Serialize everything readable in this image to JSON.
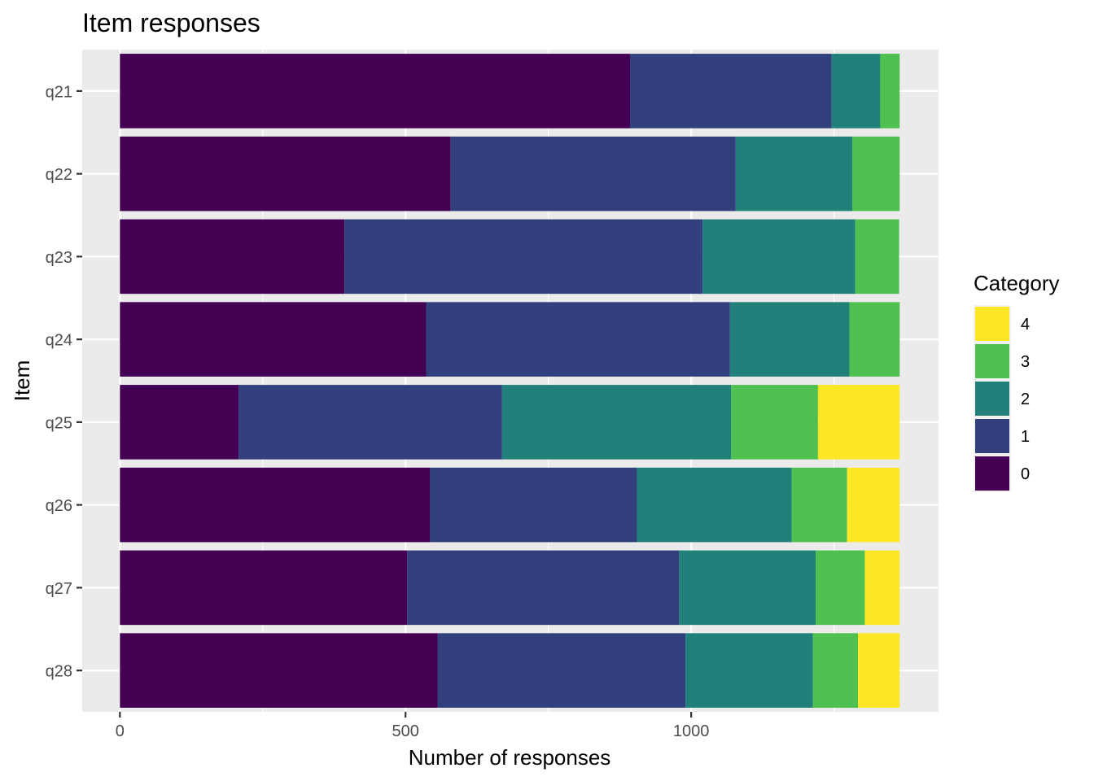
{
  "chart_data": {
    "type": "bar",
    "orientation": "horizontal",
    "stacked": true,
    "title": "Item responses",
    "xlabel": "Number of responses",
    "ylabel": "Item",
    "xlim": [
      -66,
      1433
    ],
    "x_ticks": [
      0,
      500,
      1000
    ],
    "x_tick_labels": [
      "0",
      "500",
      "1000"
    ],
    "grid": true,
    "legend_position": "right",
    "legend_title": "Category",
    "categories": [
      "q21",
      "q22",
      "q23",
      "q24",
      "q25",
      "q26",
      "q27",
      "q28"
    ],
    "series": [
      {
        "name": "0",
        "color": "#440154",
        "values": [
          893,
          579,
          393,
          536,
          208,
          543,
          503,
          556
        ]
      },
      {
        "name": "1",
        "color": "#31407C",
        "values": [
          353,
          499,
          627,
          532,
          461,
          362,
          476,
          434
        ]
      },
      {
        "name": "2",
        "color": "#21807A",
        "values": [
          85,
          204,
          267,
          209,
          401,
          271,
          239,
          223
        ]
      },
      {
        "name": "3",
        "color": "#4FC150",
        "values": [
          34,
          83,
          77,
          88,
          152,
          97,
          86,
          79
        ]
      },
      {
        "name": "4",
        "color": "#FDE725",
        "values": [
          0,
          0,
          0,
          0,
          143,
          92,
          61,
          73
        ]
      }
    ],
    "legend_items": [
      {
        "label": "4",
        "color": "#FDE725"
      },
      {
        "label": "3",
        "color": "#4FC150"
      },
      {
        "label": "2",
        "color": "#21807A"
      },
      {
        "label": "1",
        "color": "#31407C"
      },
      {
        "label": "0",
        "color": "#440154"
      }
    ]
  }
}
